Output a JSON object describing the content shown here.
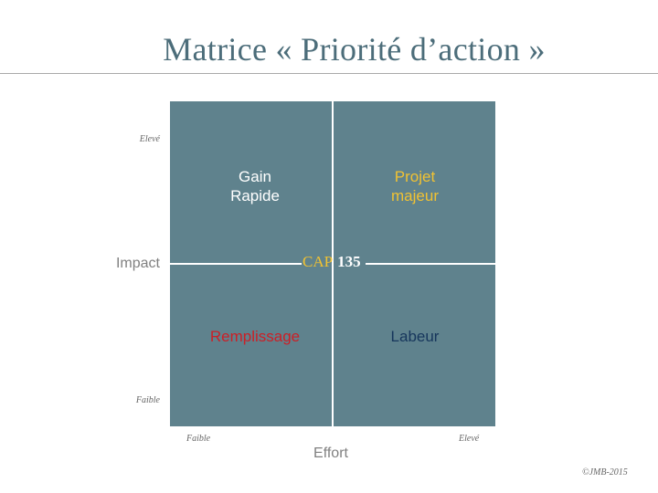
{
  "title": "Matrice « Priorité d’action »",
  "matrix": {
    "quadrants": {
      "top_left": [
        "Gain",
        "Rapide"
      ],
      "top_right": [
        "Projet",
        "majeur"
      ],
      "bottom_left": "Remplissage",
      "bottom_right": "Labeur"
    },
    "center": {
      "cap": "CAP",
      "number": "135"
    },
    "y_axis": {
      "label": "Impact",
      "high": "Elevé",
      "low": "Faible"
    },
    "x_axis": {
      "label": "Effort",
      "low": "Faible",
      "high": "Elevé"
    }
  },
  "colors": {
    "matrix_fill": "#5f828d",
    "title": "#4c6d7a",
    "gain_rapide": "#ffffff",
    "projet_majeur": "#f1c232",
    "remplissage": "#cc1f26",
    "labeur": "#16365c"
  },
  "copyright": "©JMB-2015"
}
